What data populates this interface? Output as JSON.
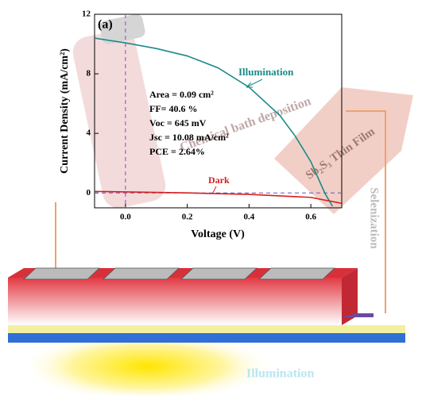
{
  "chart_data": {
    "type": "line",
    "panel_label": "(a)",
    "x_label": "Voltage (V)",
    "y_label": "Current Density (mA/cm²)",
    "xlim": [
      -0.1,
      0.7
    ],
    "ylim": [
      -1,
      12
    ],
    "xticks": [
      {
        "value": 0,
        "label": "0.0"
      },
      0.2,
      0.4,
      0.6
    ],
    "yticks": [
      0,
      4,
      8,
      12
    ],
    "series": [
      {
        "name": "Illumination",
        "color": "#1a8a8a",
        "x": [
          -0.1,
          0,
          0.1,
          0.2,
          0.3,
          0.4,
          0.5,
          0.55,
          0.6,
          0.645,
          0.67
        ],
        "values": [
          10.4,
          10.08,
          9.7,
          9.2,
          8.4,
          7.1,
          5.2,
          3.8,
          2.1,
          0,
          -0.9
        ]
      },
      {
        "name": "Dark",
        "color": "#d42020",
        "x": [
          -0.1,
          0.2,
          0.4,
          0.6,
          0.7
        ],
        "values": [
          0.1,
          0,
          -0.1,
          -0.3,
          -0.7
        ]
      }
    ],
    "annotations": [
      "Area = 0.09 cm²",
      "FF= 40.6 %",
      "Voc = 645 mV",
      "Jsc = 10.08 mA/cm²",
      "PCE = 2.64%"
    ]
  },
  "figure": {
    "process_left": "Chemical bath deposition",
    "film_label": "Sb₂S₃ Thin Film",
    "process_right": "Selenization",
    "light_label": "Illumination"
  }
}
